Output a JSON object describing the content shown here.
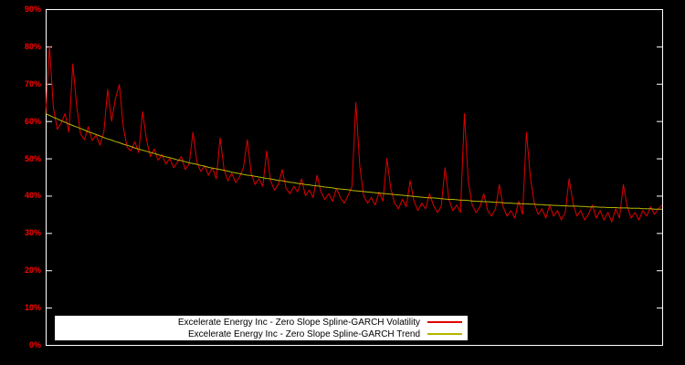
{
  "chart": {
    "background": "#000000",
    "border_color": "#ffffff",
    "tick_label_color": "#ff0000"
  },
  "legend": {
    "entries": [
      {
        "label": "Excelerate Energy Inc - Zero Slope Spline-GARCH Volatility",
        "color": "#e00000"
      },
      {
        "label": "Excelerate Energy Inc - Zero Slope Spline-GARCH Trend",
        "color": "#b5b500"
      }
    ]
  },
  "chart_data": {
    "type": "line",
    "y_unit": "%",
    "ylim": [
      0,
      90
    ],
    "y_tick_step": 10,
    "y_ticks": [
      "0%",
      "10%",
      "20%",
      "30%",
      "40%",
      "50%",
      "60%",
      "70%",
      "80%",
      "90%"
    ],
    "x_tick_labels_visible": false,
    "grid": false,
    "legend_position": "bottom-center-inside",
    "series": [
      {
        "id": "volatility",
        "name": "Excelerate Energy Inc - Zero Slope Spline-GARCH Volatility",
        "color": "#e00000",
        "values": [
          62.0,
          80.2,
          63.5,
          57.8,
          59.5,
          62.0,
          57.0,
          75.3,
          64.0,
          56.5,
          55.0,
          58.5,
          54.8,
          56.2,
          53.5,
          57.0,
          68.5,
          60.0,
          66.0,
          69.8,
          58.5,
          53.0,
          52.0,
          54.5,
          51.5,
          62.5,
          55.0,
          50.5,
          52.5,
          49.5,
          51.0,
          48.5,
          50.0,
          47.5,
          49.0,
          50.5,
          47.0,
          48.5,
          57.0,
          49.0,
          46.5,
          48.0,
          45.5,
          47.5,
          44.5,
          55.5,
          47.0,
          44.0,
          46.0,
          43.5,
          45.0,
          47.5,
          55.0,
          46.0,
          43.0,
          44.5,
          42.5,
          52.0,
          44.0,
          41.5,
          43.0,
          47.0,
          42.0,
          40.5,
          42.5,
          41.0,
          44.5,
          40.0,
          41.5,
          39.5,
          45.5,
          41.0,
          39.0,
          40.5,
          38.5,
          42.0,
          39.5,
          38.0,
          40.0,
          42.5,
          65.0,
          48.0,
          40.0,
          38.0,
          39.5,
          37.5,
          41.0,
          38.5,
          50.0,
          42.0,
          38.0,
          36.5,
          39.0,
          37.0,
          44.0,
          38.5,
          36.0,
          38.0,
          36.5,
          40.5,
          37.5,
          35.5,
          37.0,
          47.5,
          39.0,
          36.0,
          37.5,
          35.5,
          62.0,
          44.0,
          37.5,
          35.5,
          37.0,
          40.5,
          36.0,
          34.5,
          36.5,
          43.0,
          37.0,
          34.5,
          36.0,
          34.0,
          38.5,
          35.0,
          57.0,
          45.0,
          38.0,
          35.0,
          36.5,
          34.0,
          37.5,
          34.5,
          36.0,
          33.5,
          35.5,
          44.5,
          38.0,
          34.5,
          36.0,
          33.5,
          35.0,
          37.5,
          34.0,
          36.0,
          33.5,
          35.5,
          33.0,
          36.5,
          34.0,
          43.0,
          37.0,
          34.0,
          35.5,
          33.5,
          36.0,
          34.5,
          37.0,
          35.0,
          36.5,
          37.5
        ]
      },
      {
        "id": "trend",
        "name": "Excelerate Energy Inc - Zero Slope Spline-GARCH Trend",
        "color": "#b5b500",
        "values": [
          62.0,
          61.5,
          61.0,
          60.6,
          60.1,
          59.7,
          59.2,
          58.8,
          58.4,
          58.0,
          57.6,
          57.1,
          56.8,
          56.4,
          56.0,
          55.6,
          55.2,
          54.9,
          54.5,
          54.2,
          53.8,
          53.5,
          53.2,
          52.8,
          52.5,
          52.2,
          51.9,
          51.6,
          51.3,
          51.0,
          50.7,
          50.4,
          50.2,
          49.9,
          49.6,
          49.4,
          49.1,
          48.8,
          48.6,
          48.4,
          48.1,
          47.9,
          47.6,
          47.4,
          47.2,
          47.0,
          46.8,
          46.6,
          46.3,
          46.1,
          45.9,
          45.7,
          45.5,
          45.4,
          45.2,
          45.0,
          44.8,
          44.6,
          44.5,
          44.3,
          44.1,
          44.0,
          43.8,
          43.6,
          43.5,
          43.3,
          43.2,
          43.0,
          42.9,
          42.7,
          42.6,
          42.5,
          42.3,
          42.2,
          42.1,
          41.9,
          41.8,
          41.7,
          41.6,
          41.4,
          41.3,
          41.2,
          41.1,
          41.0,
          40.9,
          40.8,
          40.7,
          40.6,
          40.5,
          40.4,
          40.3,
          40.2,
          40.1,
          40.0,
          39.9,
          39.8,
          39.7,
          39.6,
          39.5,
          39.4,
          39.4,
          39.3,
          39.2,
          39.1,
          39.0,
          39.0,
          38.9,
          38.8,
          38.8,
          38.7,
          38.6,
          38.5,
          38.5,
          38.4,
          38.4,
          38.3,
          38.2,
          38.2,
          38.1,
          38.0,
          38.0,
          37.9,
          37.9,
          37.8,
          37.8,
          37.7,
          37.7,
          37.6,
          37.6,
          37.5,
          37.5,
          37.4,
          37.4,
          37.3,
          37.3,
          37.2,
          37.2,
          37.2,
          37.1,
          37.1,
          37.0,
          37.0,
          37.0,
          36.9,
          36.9,
          36.8,
          36.8,
          36.8,
          36.7,
          36.7,
          36.7,
          36.6,
          36.6,
          36.6,
          36.5,
          36.5,
          36.5,
          36.4,
          36.4,
          36.4
        ]
      }
    ]
  }
}
